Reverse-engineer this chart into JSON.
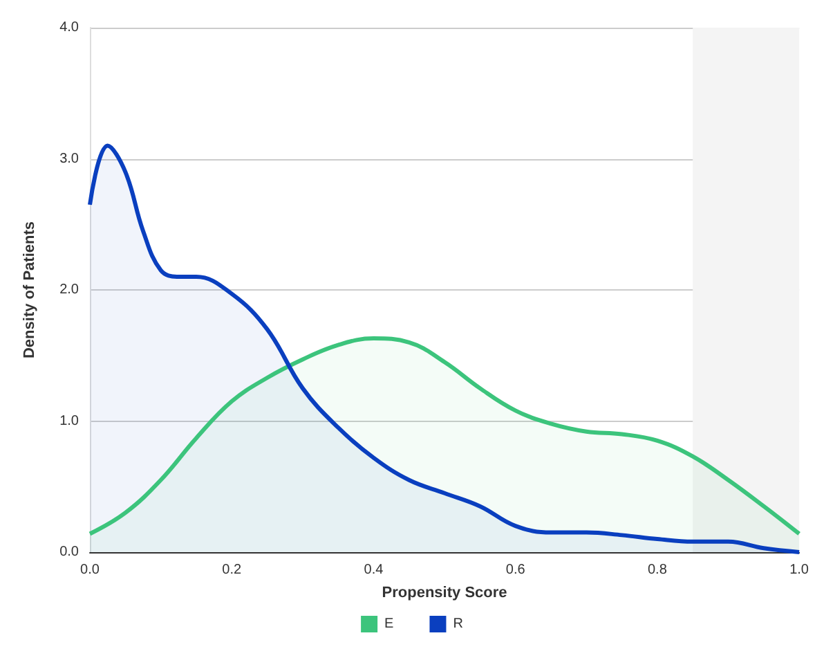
{
  "chart_data": {
    "type": "area",
    "xlabel": "Propensity Score",
    "ylabel": "Density of Patients",
    "xlim": [
      0,
      1
    ],
    "xticks": [
      {
        "value": 0,
        "label": "0.0"
      },
      0.2,
      0.4,
      0.6,
      0.8,
      {
        "value": 1,
        "label": "1.0"
      }
    ],
    "ylim": [
      0,
      4
    ],
    "yticks": [
      {
        "value": 0,
        "label": "0.0"
      },
      {
        "value": 1,
        "label": "1.0"
      },
      {
        "value": 2,
        "label": "2.0"
      },
      {
        "value": 3,
        "label": "3.0"
      },
      {
        "value": 4,
        "label": "4.0"
      }
    ],
    "grid": "y",
    "legend": "bottom",
    "marker": "none",
    "line_style": "solid",
    "bands": [
      {
        "axis": "x",
        "from": 0.85,
        "to": 1,
        "color": "#f4f4f4"
      }
    ],
    "series": [
      {
        "name": "E",
        "color": "#3cc47c",
        "x": [
          0,
          0.05,
          0.1,
          0.15,
          0.2,
          0.25,
          0.3,
          0.35,
          0.4,
          0.45,
          0.5,
          0.55,
          0.6,
          0.65,
          0.7,
          0.75,
          0.8,
          0.85,
          0.9,
          0.95,
          1
        ],
        "values": [
          0.14,
          0.3,
          0.55,
          0.87,
          1.15,
          1.33,
          1.47,
          1.58,
          1.63,
          1.6,
          1.45,
          1.25,
          1.08,
          0.98,
          0.92,
          0.9,
          0.85,
          0.73,
          0.55,
          0.35,
          0.14
        ]
      },
      {
        "name": "R",
        "color": "#0a3fbf",
        "x": [
          0,
          0.025,
          0.05,
          0.075,
          0.1,
          0.125,
          0.15,
          0.2,
          0.25,
          0.3,
          0.35,
          0.4,
          0.45,
          0.5,
          0.55,
          0.6,
          0.65,
          0.7,
          0.75,
          0.8,
          0.85,
          0.9,
          0.95,
          1
        ],
        "values": [
          2.65,
          3.1,
          2.9,
          2.45,
          2.15,
          2.1,
          2.1,
          1.97,
          1.7,
          1.25,
          0.95,
          0.72,
          0.55,
          0.45,
          0.35,
          0.2,
          0.15,
          0.15,
          0.13,
          0.1,
          0.08,
          0.08,
          0.03,
          0
        ]
      }
    ]
  }
}
